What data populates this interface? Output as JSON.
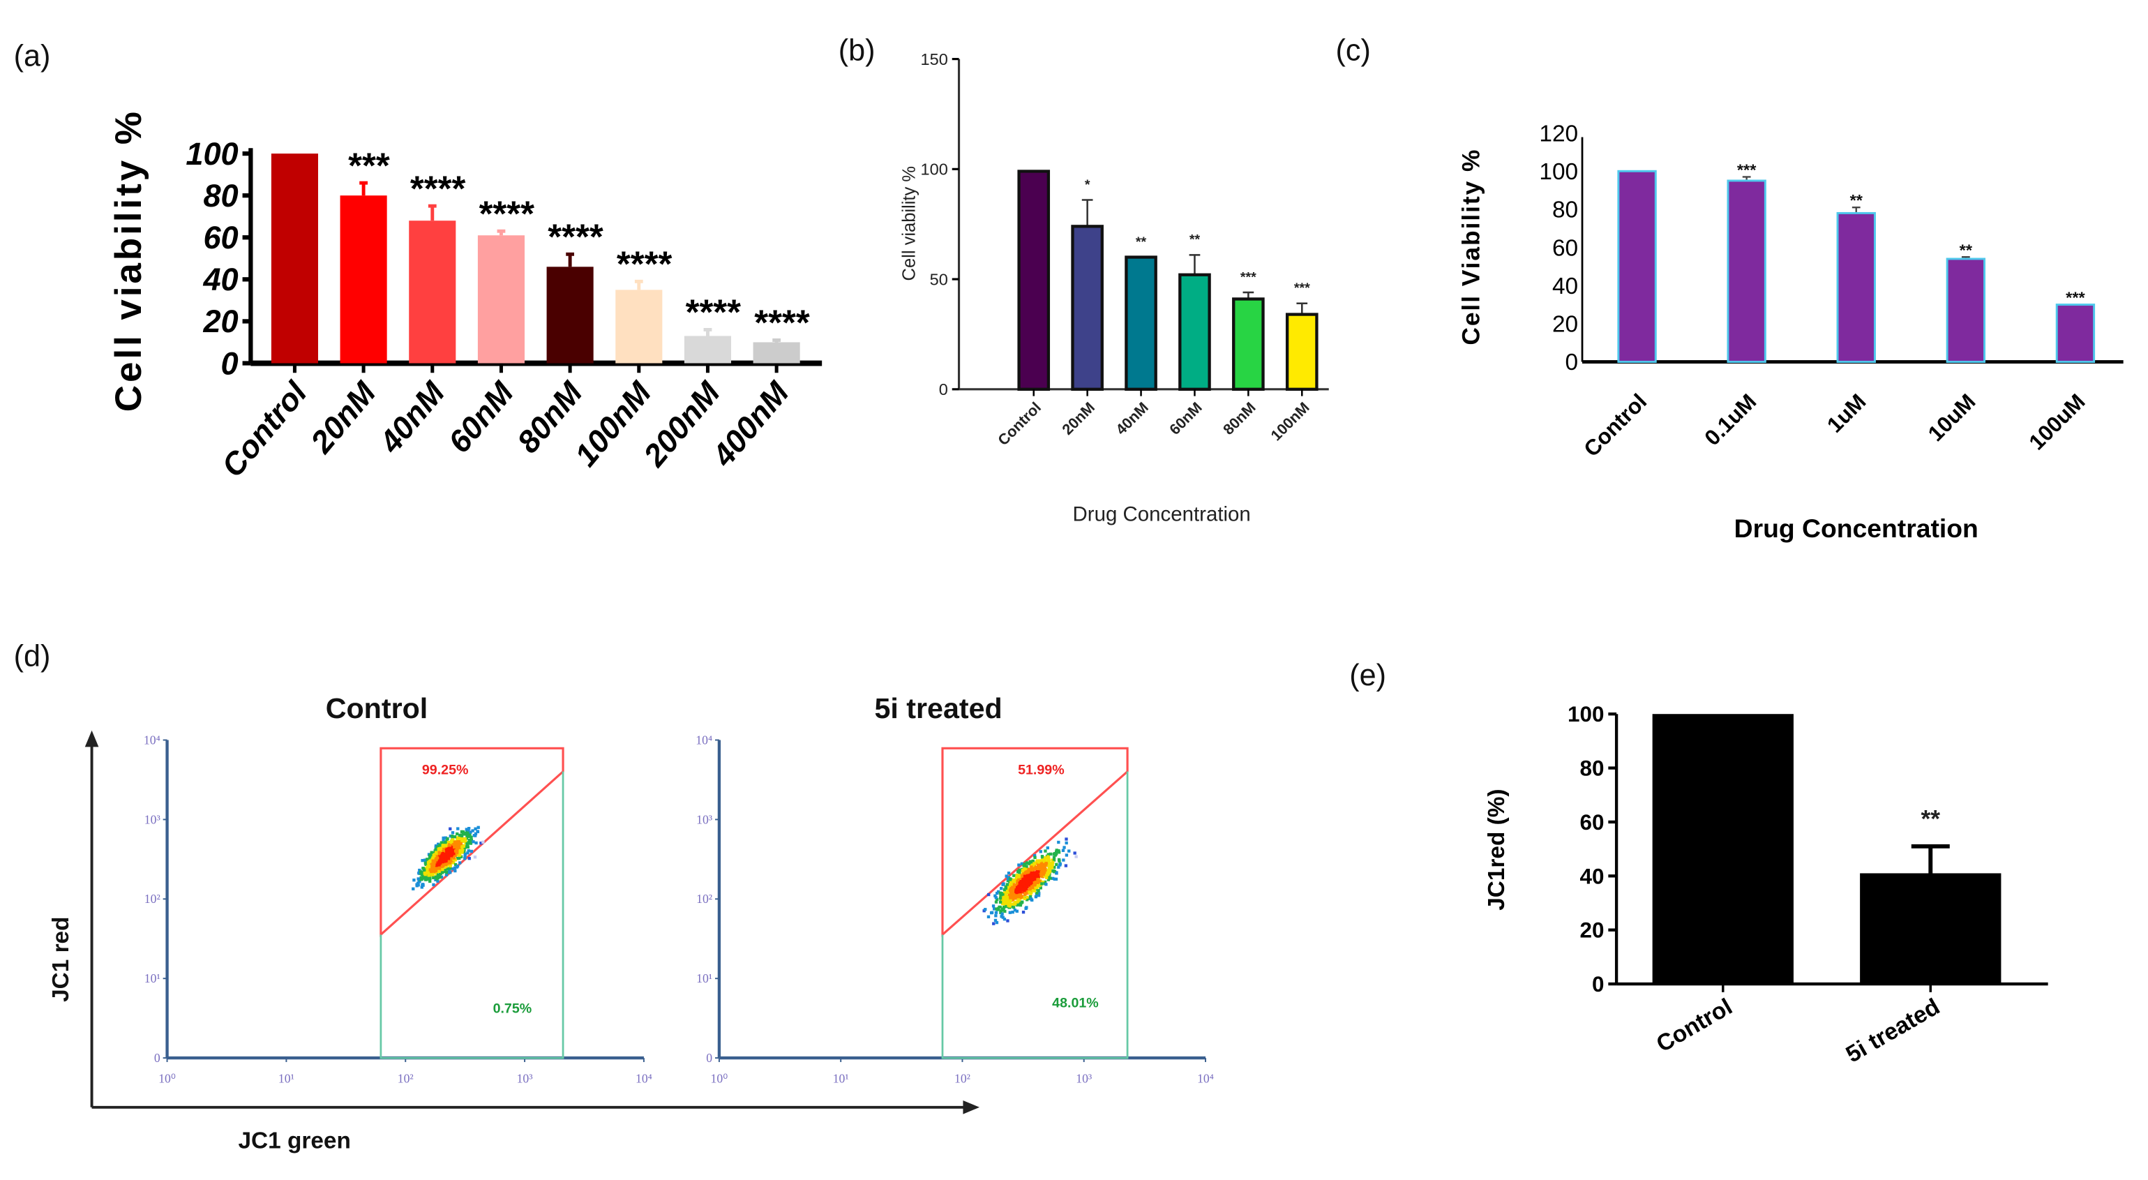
{
  "panels": {
    "a": "(a)",
    "b": "(b)",
    "c": "(c)",
    "d": "(d)",
    "e": "(e)"
  },
  "chart_data": [
    {
      "id": "a",
      "type": "bar",
      "title": "",
      "xlabel": "",
      "ylabel": "Cell viability %",
      "ylim": [
        0,
        100
      ],
      "yticks": [
        0,
        20,
        40,
        60,
        80,
        100
      ],
      "categories": [
        "Control",
        "20nM",
        "40nM",
        "60nM",
        "80nM",
        "100nM",
        "200nM",
        "400nM"
      ],
      "values": [
        100,
        80,
        68,
        61,
        46,
        35,
        13,
        10
      ],
      "error_upper": [
        100,
        86,
        75,
        63,
        52,
        39,
        16,
        11
      ],
      "colors": [
        "#c00000",
        "#ff0000",
        "#ff4040",
        "#ffa0a0",
        "#4a0000",
        "#ffe0c0",
        "#d9d9d9",
        "#cccccc"
      ],
      "significance": [
        "",
        "***",
        "****",
        "****",
        "****",
        "****",
        "****",
        "****"
      ],
      "grid": false
    },
    {
      "id": "b",
      "type": "bar",
      "title": "",
      "xlabel": "Drug Concentration",
      "ylabel": "Cell viability %",
      "ylim": [
        0,
        150
      ],
      "yticks": [
        0,
        50,
        100,
        150
      ],
      "categories": [
        "Control",
        "20nM",
        "40nM",
        "60nM",
        "80nM",
        "100nM"
      ],
      "values": [
        99,
        74,
        60,
        52,
        41,
        34
      ],
      "error_upper": [
        99,
        86,
        60,
        61,
        44,
        39
      ],
      "colors": [
        "#4b0050",
        "#3e428a",
        "#00798f",
        "#00ad84",
        "#28d444",
        "#ffea00"
      ],
      "significance": [
        "",
        "*",
        "**",
        "**",
        "***",
        "***"
      ],
      "grid": false
    },
    {
      "id": "c",
      "type": "bar",
      "title": "",
      "xlabel": "Drug Concentration",
      "ylabel": "Cell Viability %",
      "ylim": [
        0,
        120
      ],
      "yticks": [
        0,
        20,
        40,
        60,
        80,
        100,
        120
      ],
      "categories": [
        "Control",
        "0.1uM",
        "1uM",
        "10uM",
        "100uM"
      ],
      "values": [
        100,
        95,
        78,
        54,
        30
      ],
      "error_upper": [
        100,
        97,
        81,
        55,
        30
      ],
      "colors": [
        "#7f2a9e"
      ],
      "edge_color": "#4fc8ec",
      "significance": [
        "",
        "***",
        "**",
        "**",
        "***"
      ],
      "grid": false
    },
    {
      "id": "d",
      "type": "scatter",
      "xlabel": "JC1 green",
      "ylabel": "JC1 red",
      "xticks": [
        "10⁰",
        "10¹",
        "10²",
        "10³",
        "10⁴"
      ],
      "yticks": [
        "0",
        "10¹",
        "10²",
        "10³",
        "10⁴"
      ],
      "subplots": [
        {
          "title": "Control",
          "upper_gate_pct": "99.25%",
          "lower_gate_pct": "0.75%"
        },
        {
          "title": "5i treated",
          "upper_gate_pct": "51.99%",
          "lower_gate_pct": "48.01%"
        }
      ],
      "gate_colors": {
        "upper": "#ff5050",
        "lower": "#66c9a6"
      }
    },
    {
      "id": "e",
      "type": "bar",
      "title": "",
      "xlabel": "",
      "ylabel": "JC1red (%)",
      "ylim": [
        0,
        100
      ],
      "yticks": [
        0,
        20,
        40,
        60,
        80,
        100
      ],
      "categories": [
        "Control",
        "5i treated"
      ],
      "values": [
        100,
        41
      ],
      "error_upper": [
        100,
        51
      ],
      "colors": [
        "#000000"
      ],
      "significance": [
        "",
        "**"
      ],
      "grid": false
    }
  ]
}
